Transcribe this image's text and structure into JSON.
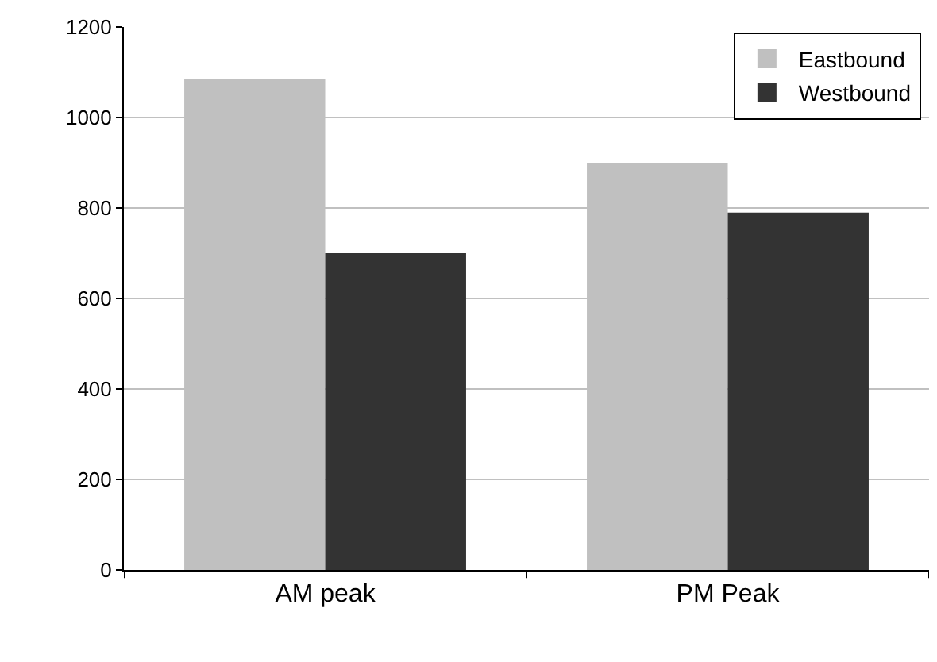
{
  "chart_data": {
    "type": "bar",
    "categories": [
      "AM peak",
      "PM Peak"
    ],
    "series": [
      {
        "name": "Eastbound",
        "color": "#c0c0c0",
        "values": [
          1085,
          900
        ]
      },
      {
        "name": "Westbound",
        "color": "#333333",
        "values": [
          700,
          790
        ]
      }
    ],
    "ylim": [
      0,
      1200
    ],
    "yticks": [
      0,
      200,
      400,
      600,
      800,
      1000,
      1200
    ],
    "grid": "y",
    "legend": "top right"
  }
}
